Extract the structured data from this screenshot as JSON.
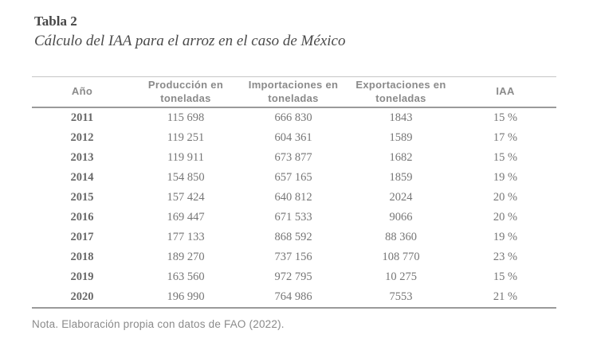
{
  "header": {
    "label": "Tabla 2",
    "title": "Cálculo del IAA para el arroz en el caso de México"
  },
  "table": {
    "columns": [
      {
        "label": "Año"
      },
      {
        "label": "Producción en\ntoneladas"
      },
      {
        "label": "Importaciones en\ntoneladas"
      },
      {
        "label": "Exportaciones en\ntoneladas"
      },
      {
        "label": "IAA"
      }
    ],
    "rows": [
      {
        "year": "2011",
        "produccion": "115 698",
        "importaciones": "666 830",
        "exportaciones": "1843",
        "iaa": "15 %"
      },
      {
        "year": "2012",
        "produccion": "119 251",
        "importaciones": "604 361",
        "exportaciones": "1589",
        "iaa": "17 %"
      },
      {
        "year": "2013",
        "produccion": "119 911",
        "importaciones": "673 877",
        "exportaciones": "1682",
        "iaa": "15 %"
      },
      {
        "year": "2014",
        "produccion": "154 850",
        "importaciones": "657 165",
        "exportaciones": "1859",
        "iaa": "19 %"
      },
      {
        "year": "2015",
        "produccion": "157 424",
        "importaciones": "640 812",
        "exportaciones": "2024",
        "iaa": "20 %"
      },
      {
        "year": "2016",
        "produccion": "169 447",
        "importaciones": "671 533",
        "exportaciones": "9066",
        "iaa": "20 %"
      },
      {
        "year": "2017",
        "produccion": "177 133",
        "importaciones": "868 592",
        "exportaciones": "88 360",
        "iaa": "19 %"
      },
      {
        "year": "2018",
        "produccion": "189 270",
        "importaciones": "737 156",
        "exportaciones": "108 770",
        "iaa": "23 %"
      },
      {
        "year": "2019",
        "produccion": "163 560",
        "importaciones": "972 795",
        "exportaciones": "10 275",
        "iaa": "15 %"
      },
      {
        "year": "2020",
        "produccion": "196 990",
        "importaciones": "764 986",
        "exportaciones": "7553",
        "iaa": "21 %"
      }
    ]
  },
  "footer": {
    "note": "Nota. Elaboración propia con datos de FAO (2022)."
  },
  "colors": {
    "background": "#ffffff",
    "title_text": "#464646",
    "header_text": "#8a8a8a",
    "body_text": "#767676",
    "rule_light": "#c6c6c6",
    "rule_dark": "#9a9a9a"
  }
}
